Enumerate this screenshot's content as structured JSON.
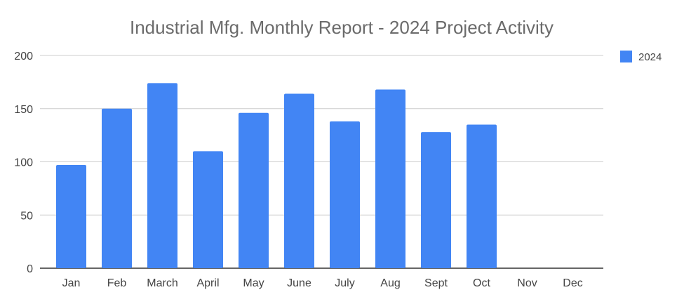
{
  "chart_data": {
    "type": "bar",
    "title": "Industrial Mfg. Monthly Report - 2024 Project Activity",
    "xlabel": "",
    "ylabel": "",
    "categories": [
      "Jan",
      "Feb",
      "March",
      "April",
      "May",
      "June",
      "July",
      "Aug",
      "Sept",
      "Oct",
      "Nov",
      "Dec"
    ],
    "series": [
      {
        "name": "2024",
        "color": "#4285f4",
        "values": [
          97,
          150,
          174,
          110,
          146,
          164,
          138,
          168,
          128,
          135,
          null,
          null
        ]
      }
    ],
    "ylim": [
      0,
      200
    ],
    "yticks": [
      "0",
      "50",
      "100",
      "150",
      "200"
    ],
    "grid": true,
    "legend_position": "top-right"
  }
}
